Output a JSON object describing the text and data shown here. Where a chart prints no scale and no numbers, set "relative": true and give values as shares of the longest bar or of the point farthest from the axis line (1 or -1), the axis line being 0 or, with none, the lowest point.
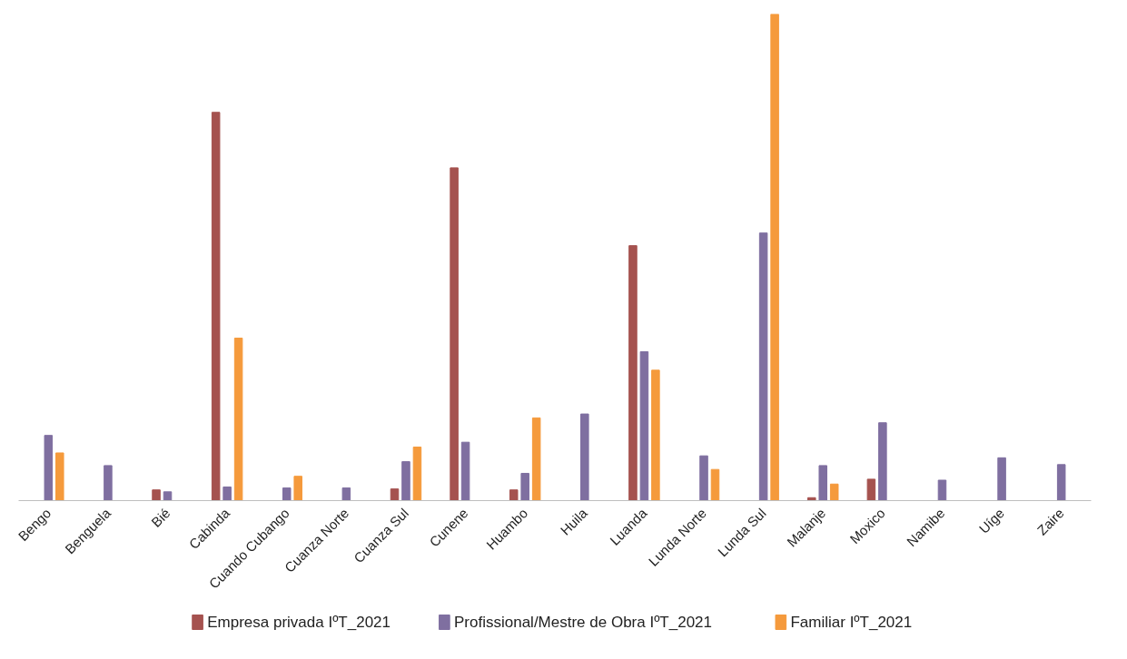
{
  "chart_data": {
    "type": "bar",
    "relative": true,
    "legend": "bottom",
    "grid": false,
    "categories": [
      "Bengo",
      "Benguela",
      "Bié",
      "Cabinda",
      "Cuando Cubango",
      "Cuanza Norte",
      "Cuanza Sul",
      "Cunene",
      "Huambo",
      "Huila",
      "Luanda",
      "Lunda Norte",
      "Lunda Sul",
      "Malanje",
      "Moxico",
      "Namibe",
      "Uíge",
      "Zaire"
    ],
    "series": [
      {
        "name": "Empresa privada IºT_2021",
        "color": "#a5524f",
        "values": [
          null,
          null,
          0.022,
          0.798,
          null,
          null,
          0.024,
          0.684,
          0.022,
          null,
          0.524,
          null,
          null,
          0.006,
          0.044,
          null,
          null,
          null
        ]
      },
      {
        "name": "Profissional/Mestre de Obra IºT_2021",
        "color": "#7f6fa0",
        "values": [
          0.134,
          0.072,
          0.018,
          0.028,
          0.026,
          0.026,
          0.08,
          0.12,
          0.056,
          0.178,
          0.306,
          0.092,
          0.55,
          0.072,
          0.16,
          0.042,
          0.088,
          0.074
        ]
      },
      {
        "name": "Familiar IºT_2021",
        "color": "#f59a3c",
        "values": [
          0.098,
          null,
          null,
          0.334,
          0.05,
          null,
          0.11,
          null,
          0.17,
          null,
          0.268,
          0.064,
          1,
          0.034,
          null,
          null,
          null,
          null
        ]
      }
    ]
  }
}
